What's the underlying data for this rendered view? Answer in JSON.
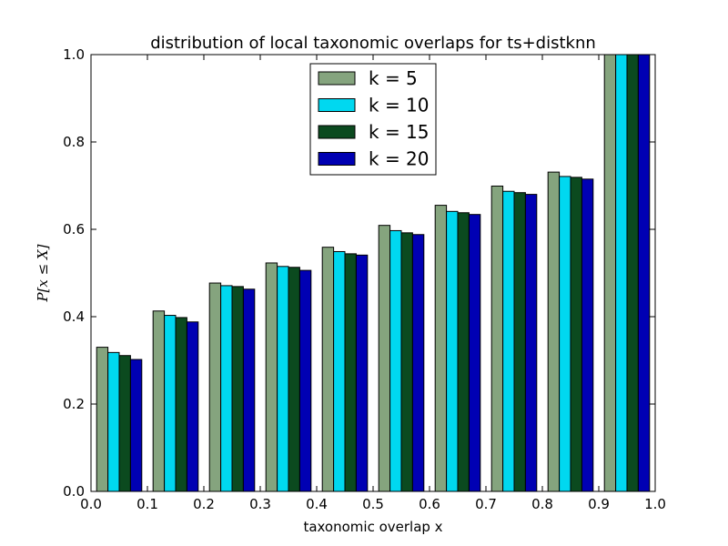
{
  "chart_data": {
    "type": "bar",
    "title": "distribution of local taxonomic overlaps for ts+distknn",
    "xlabel": "taxonomic overlap x",
    "ylabel": "P[x ≤ X]",
    "xlim": [
      0.0,
      1.0
    ],
    "ylim": [
      0.0,
      1.0
    ],
    "xticks": [
      "0.0",
      "0.1",
      "0.2",
      "0.3",
      "0.4",
      "0.5",
      "0.6",
      "0.7",
      "0.8",
      "0.9",
      "1.0"
    ],
    "yticks": [
      "0.0",
      "0.2",
      "0.4",
      "0.6",
      "0.8",
      "1.0"
    ],
    "bin_starts": [
      0.0,
      0.1,
      0.2,
      0.3,
      0.4,
      0.5,
      0.6,
      0.7,
      0.8,
      0.9
    ],
    "legend_position": "upper center",
    "grid": false,
    "series": [
      {
        "name": "k = 5",
        "color": "#85a47e",
        "values": [
          0.33,
          0.413,
          0.477,
          0.523,
          0.559,
          0.609,
          0.655,
          0.699,
          0.731,
          1.0
        ]
      },
      {
        "name": "k = 10",
        "color": "#00d8f0",
        "values": [
          0.318,
          0.403,
          0.471,
          0.515,
          0.549,
          0.597,
          0.641,
          0.687,
          0.721,
          1.0
        ]
      },
      {
        "name": "k = 15",
        "color": "#0b4a1f",
        "values": [
          0.311,
          0.398,
          0.469,
          0.513,
          0.544,
          0.592,
          0.638,
          0.684,
          0.719,
          1.0
        ]
      },
      {
        "name": "k = 20",
        "color": "#0000b3",
        "values": [
          0.302,
          0.388,
          0.463,
          0.506,
          0.541,
          0.588,
          0.634,
          0.68,
          0.715,
          1.0
        ]
      }
    ]
  }
}
